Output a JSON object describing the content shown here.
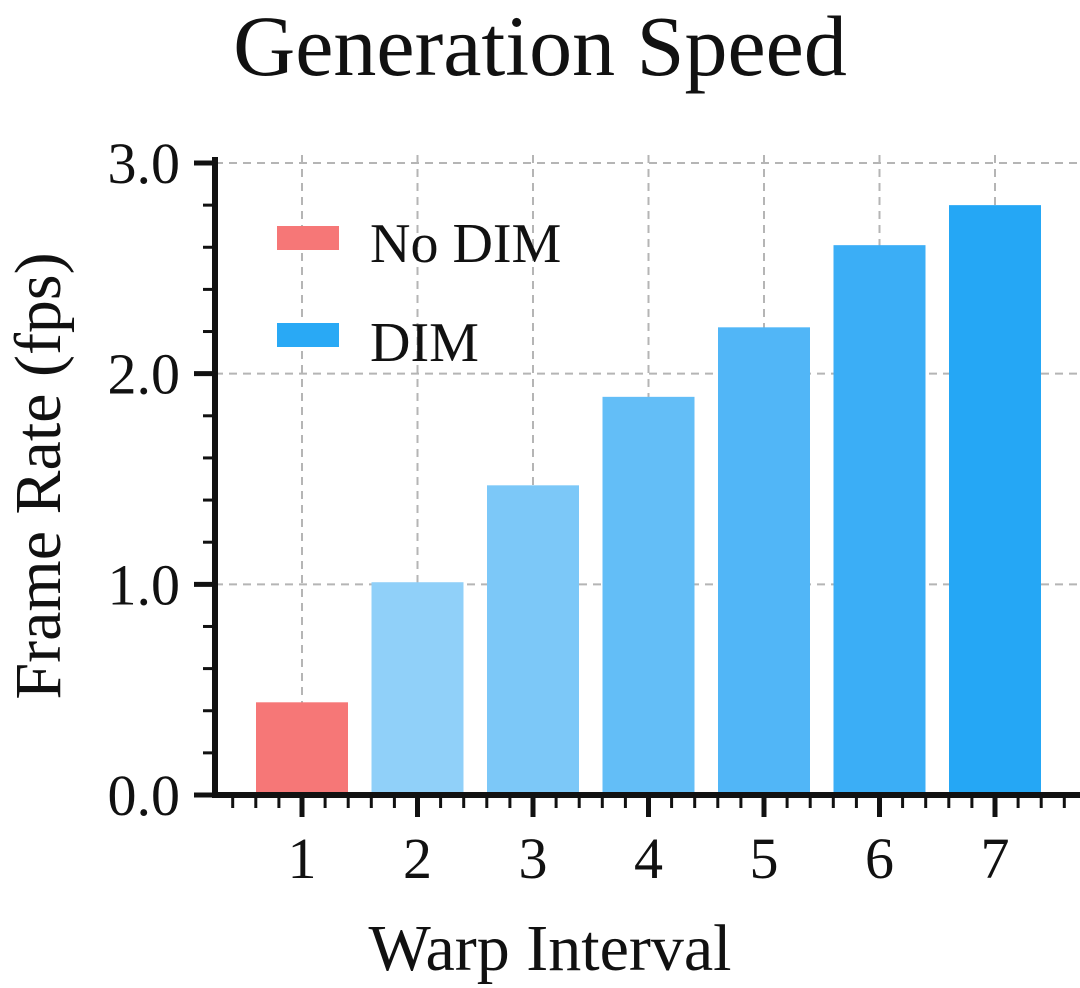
{
  "chart_data": {
    "type": "bar",
    "title": "Generation Speed",
    "xlabel": "Warp Interval",
    "ylabel": "Frame Rate (fps)",
    "categories": [
      "1",
      "2",
      "3",
      "4",
      "5",
      "6",
      "7"
    ],
    "series": [
      {
        "name": "No DIM",
        "color": "#F67777",
        "values": [
          0.44,
          null,
          null,
          null,
          null,
          null,
          null
        ]
      },
      {
        "name": "DIM",
        "color": "#29A9F5",
        "values": [
          null,
          1.01,
          1.47,
          1.89,
          2.22,
          2.61,
          2.8
        ]
      }
    ],
    "bar_colors": [
      "#F67777",
      "#90D0F9",
      "#7CC8F8",
      "#63BEF7",
      "#51B6F7",
      "#3BAEF6",
      "#25A7F5"
    ],
    "ylim": [
      0,
      3
    ],
    "yticks": [
      "0.0",
      "1.0",
      "2.0",
      "3.0"
    ],
    "grid": true,
    "legend_position": "top-left"
  }
}
